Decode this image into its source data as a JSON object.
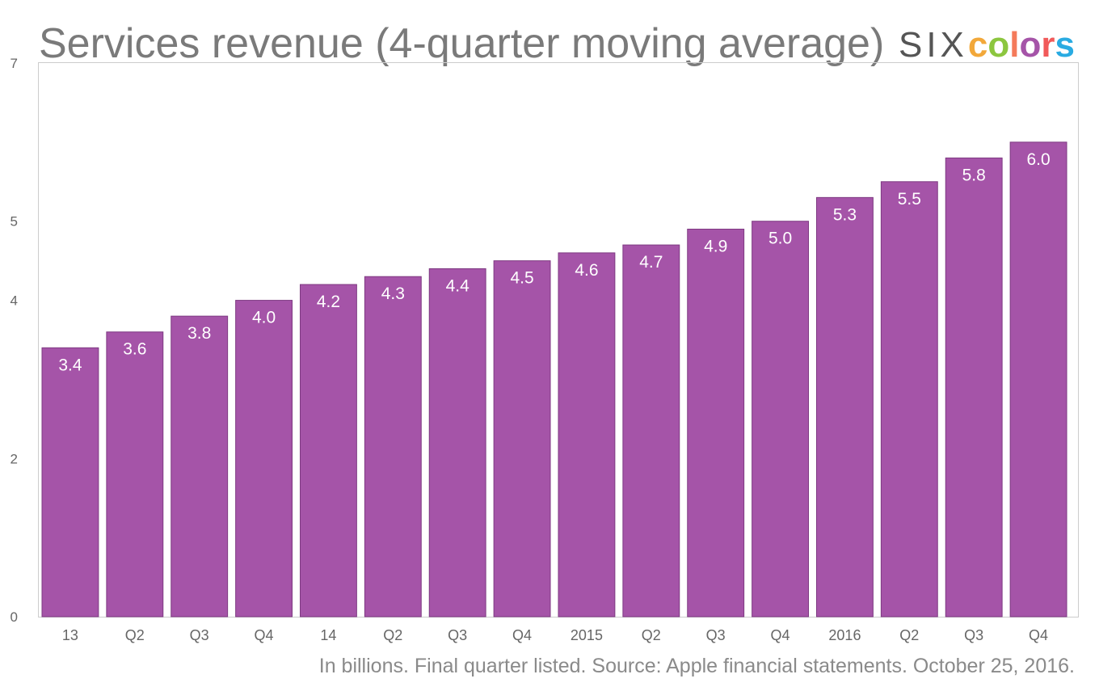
{
  "chart_data": {
    "type": "bar",
    "title": "Services revenue (4-quarter moving average)",
    "subtitle": "In billions. Final quarter listed. Source: Apple financial statements. October 25, 2016.",
    "xlabel": "",
    "ylabel": "",
    "categories": [
      "13",
      "Q2",
      "Q3",
      "Q4",
      "14",
      "Q2",
      "Q3",
      "Q4",
      "2015",
      "Q2",
      "Q3",
      "Q4",
      "2016",
      "Q2",
      "Q3",
      "Q4"
    ],
    "values": [
      3.4,
      3.6,
      3.8,
      4.0,
      4.2,
      4.3,
      4.4,
      4.5,
      4.6,
      4.7,
      4.9,
      5.0,
      5.3,
      5.5,
      5.8,
      6.0
    ],
    "data_labels": [
      "3.4",
      "3.6",
      "3.8",
      "4.0",
      "4.2",
      "4.3",
      "4.4",
      "4.5",
      "4.6",
      "4.7",
      "4.9",
      "5.0",
      "5.3",
      "5.5",
      "5.8",
      "6.0"
    ],
    "y_ticks": [
      0,
      2,
      4,
      5,
      7
    ],
    "ylim": [
      0,
      7
    ],
    "grid": false,
    "legend": "none",
    "bar_color": "#a554a8",
    "data_label_color": "#ffffff"
  },
  "brand": {
    "part1": "SIX",
    "letters": [
      {
        "ch": "c",
        "color": "#f2a83a"
      },
      {
        "ch": "o",
        "color": "#8cc63f"
      },
      {
        "ch": "l",
        "color": "#f47a5a"
      },
      {
        "ch": "o",
        "color": "#a554a8"
      },
      {
        "ch": "r",
        "color": "#f15a5a"
      },
      {
        "ch": "s",
        "color": "#29abe2"
      }
    ]
  }
}
